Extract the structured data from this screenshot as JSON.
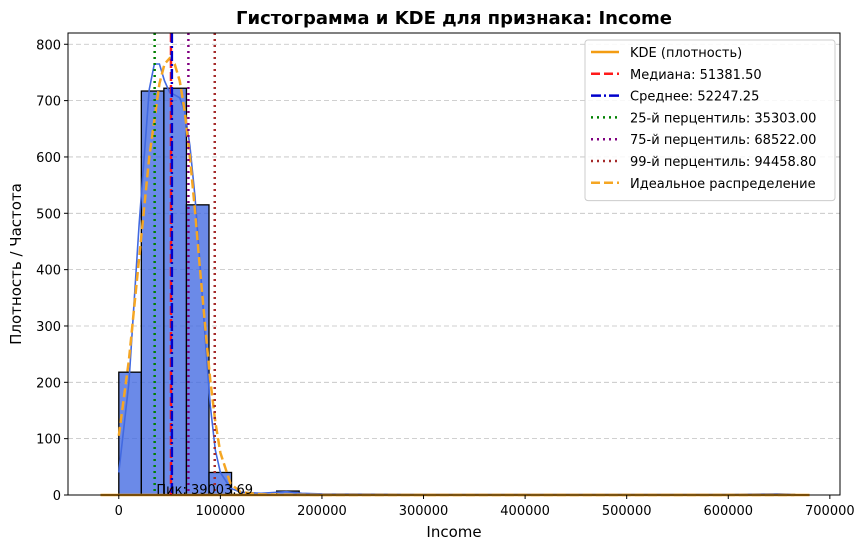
{
  "chart_data": {
    "type": "bar",
    "title": "Гистограмма и KDE для признака: Income",
    "xlabel": "Income",
    "ylabel": "Плотность / Частота",
    "xlim": [
      -50000,
      710000
    ],
    "ylim": [
      0,
      820
    ],
    "x_ticks": [
      0,
      100000,
      200000,
      300000,
      400000,
      500000,
      600000,
      700000
    ],
    "y_ticks": [
      0,
      100,
      200,
      300,
      400,
      500,
      600,
      700,
      800
    ],
    "grid": "y-dashed",
    "legend_position": "top-right",
    "histogram": {
      "color": "#4169e1",
      "bins": [
        {
          "x0": 0,
          "x1": 22200,
          "value": 218
        },
        {
          "x0": 22200,
          "x1": 44400,
          "value": 717
        },
        {
          "x0": 44400,
          "x1": 66600,
          "value": 722
        },
        {
          "x0": 66600,
          "x1": 88800,
          "value": 515
        },
        {
          "x0": 88800,
          "x1": 111000,
          "value": 40
        },
        {
          "x0": 111000,
          "x1": 133200,
          "value": 1
        },
        {
          "x0": 155400,
          "x1": 177600,
          "value": 7
        },
        {
          "x0": 643200,
          "x1": 665400,
          "value": 1
        }
      ]
    },
    "hist_kde": {
      "color": "#4169e1",
      "x": [
        0,
        10000,
        20000,
        30000,
        35000,
        40000,
        45000,
        50000,
        55000,
        60000,
        65000,
        70000,
        75000,
        80000,
        85000,
        90000,
        95000,
        100000,
        110000,
        120000,
        140000,
        165000,
        180000,
        200000,
        300000,
        400000,
        500000,
        600000,
        650000,
        665000
      ],
      "y": [
        40,
        200,
        480,
        720,
        765,
        765,
        735,
        715,
        710,
        705,
        680,
        620,
        530,
        410,
        280,
        160,
        80,
        40,
        12,
        5,
        3,
        6,
        3,
        2,
        1,
        1,
        1,
        1,
        2,
        1
      ]
    },
    "series": [
      {
        "name": "KDE (плотность)",
        "color": "#f39c12",
        "style": "solid",
        "x": [
          -18000,
          680000
        ],
        "y": [
          0,
          0
        ]
      },
      {
        "name": "Идеальное распределение",
        "color": "#f5a623",
        "style": "dashed",
        "x": [
          0,
          10000,
          20000,
          30000,
          40000,
          45000,
          50000,
          55000,
          60000,
          65000,
          70000,
          75000,
          80000,
          85000,
          90000,
          95000,
          100000,
          110000,
          120000,
          140000,
          200000,
          400000,
          600000,
          665000
        ],
        "y": [
          105,
          240,
          420,
          600,
          730,
          765,
          775,
          765,
          735,
          680,
          600,
          505,
          400,
          300,
          205,
          130,
          75,
          20,
          5,
          1,
          0,
          0,
          0,
          0
        ]
      }
    ],
    "vlines": [
      {
        "name": "Медиана: 51381.50",
        "x": 51381.5,
        "color": "#ff1a1a",
        "style": "dashed"
      },
      {
        "name": "Среднее: 52247.25",
        "x": 52247.25,
        "color": "#0000cc",
        "style": "dashdot"
      },
      {
        "name": "25-й перцентиль: 35303.00",
        "x": 35303.0,
        "color": "#008000",
        "style": "dotted"
      },
      {
        "name": "75-й перцентиль: 68522.00",
        "x": 68522.0,
        "color": "#800080",
        "style": "dotted"
      },
      {
        "name": "99-й перцентиль: 94458.80",
        "x": 94458.8,
        "color": "#a52a2a",
        "style": "dotted"
      }
    ],
    "annotations": [
      {
        "text": "Пик: 39003.69",
        "x": 39003.69,
        "y": 0
      }
    ]
  }
}
